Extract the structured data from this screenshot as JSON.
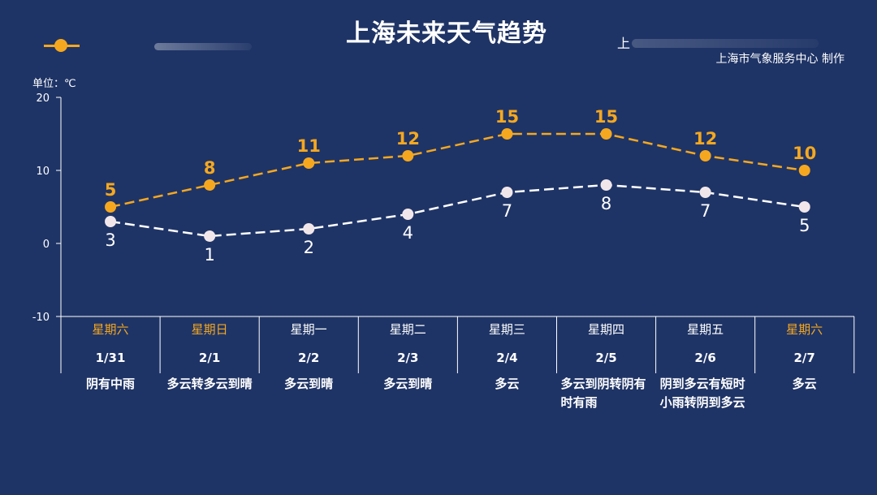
{
  "title": "上海未来天气趋势",
  "legend": {
    "series2_prefix": "上"
  },
  "source": "上海市气象服务中心  制作",
  "unit_label": "单位：℃",
  "colors": {
    "background": "#1f3466",
    "high": "#f5a81f",
    "low": "#ffffff",
    "weekend": "#f5a81f",
    "axis": "#ffffff"
  },
  "chart_data": {
    "type": "line",
    "ylim": [
      -10,
      20
    ],
    "yticks": [
      "20",
      "10",
      "0",
      "-10"
    ],
    "categories": [
      "1/31",
      "2/1",
      "2/2",
      "2/3",
      "2/4",
      "2/5",
      "2/6",
      "2/7"
    ],
    "series": [
      {
        "key": "high",
        "values": [
          5,
          8,
          11,
          12,
          15,
          15,
          12,
          10
        ]
      },
      {
        "key": "low",
        "values": [
          3,
          1,
          2,
          4,
          7,
          8,
          7,
          5
        ]
      }
    ],
    "grid": false,
    "line_style": "dashed"
  },
  "days": [
    {
      "weekday": "星期六",
      "date": "1/31",
      "weather": "阴有中雨",
      "weekend": true
    },
    {
      "weekday": "星期日",
      "date": "2/1",
      "weather": "多云转多云到晴",
      "weekend": true
    },
    {
      "weekday": "星期一",
      "date": "2/2",
      "weather": "多云到晴",
      "weekend": false
    },
    {
      "weekday": "星期二",
      "date": "2/3",
      "weather": "多云到晴",
      "weekend": false
    },
    {
      "weekday": "星期三",
      "date": "2/4",
      "weather": "多云",
      "weekend": false
    },
    {
      "weekday": "星期四",
      "date": "2/5",
      "weather": "多云到阴转阴有时有雨",
      "weekend": false
    },
    {
      "weekday": "星期五",
      "date": "2/6",
      "weather": "阴到多云有短时小雨转阴到多云",
      "weekend": false
    },
    {
      "weekday": "星期六",
      "date": "2/7",
      "weather": "多云",
      "weekend": true
    }
  ]
}
